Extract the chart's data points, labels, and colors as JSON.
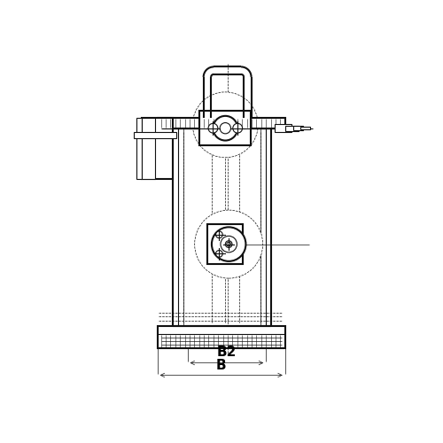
{
  "bg_color": "#ffffff",
  "line_color": "#111111",
  "dash_color": "#111111",
  "text_color": "#000000",
  "fig_width": 5.0,
  "fig_height": 5.0,
  "dpi": 100,
  "label_B2": "B2",
  "label_B": "B"
}
